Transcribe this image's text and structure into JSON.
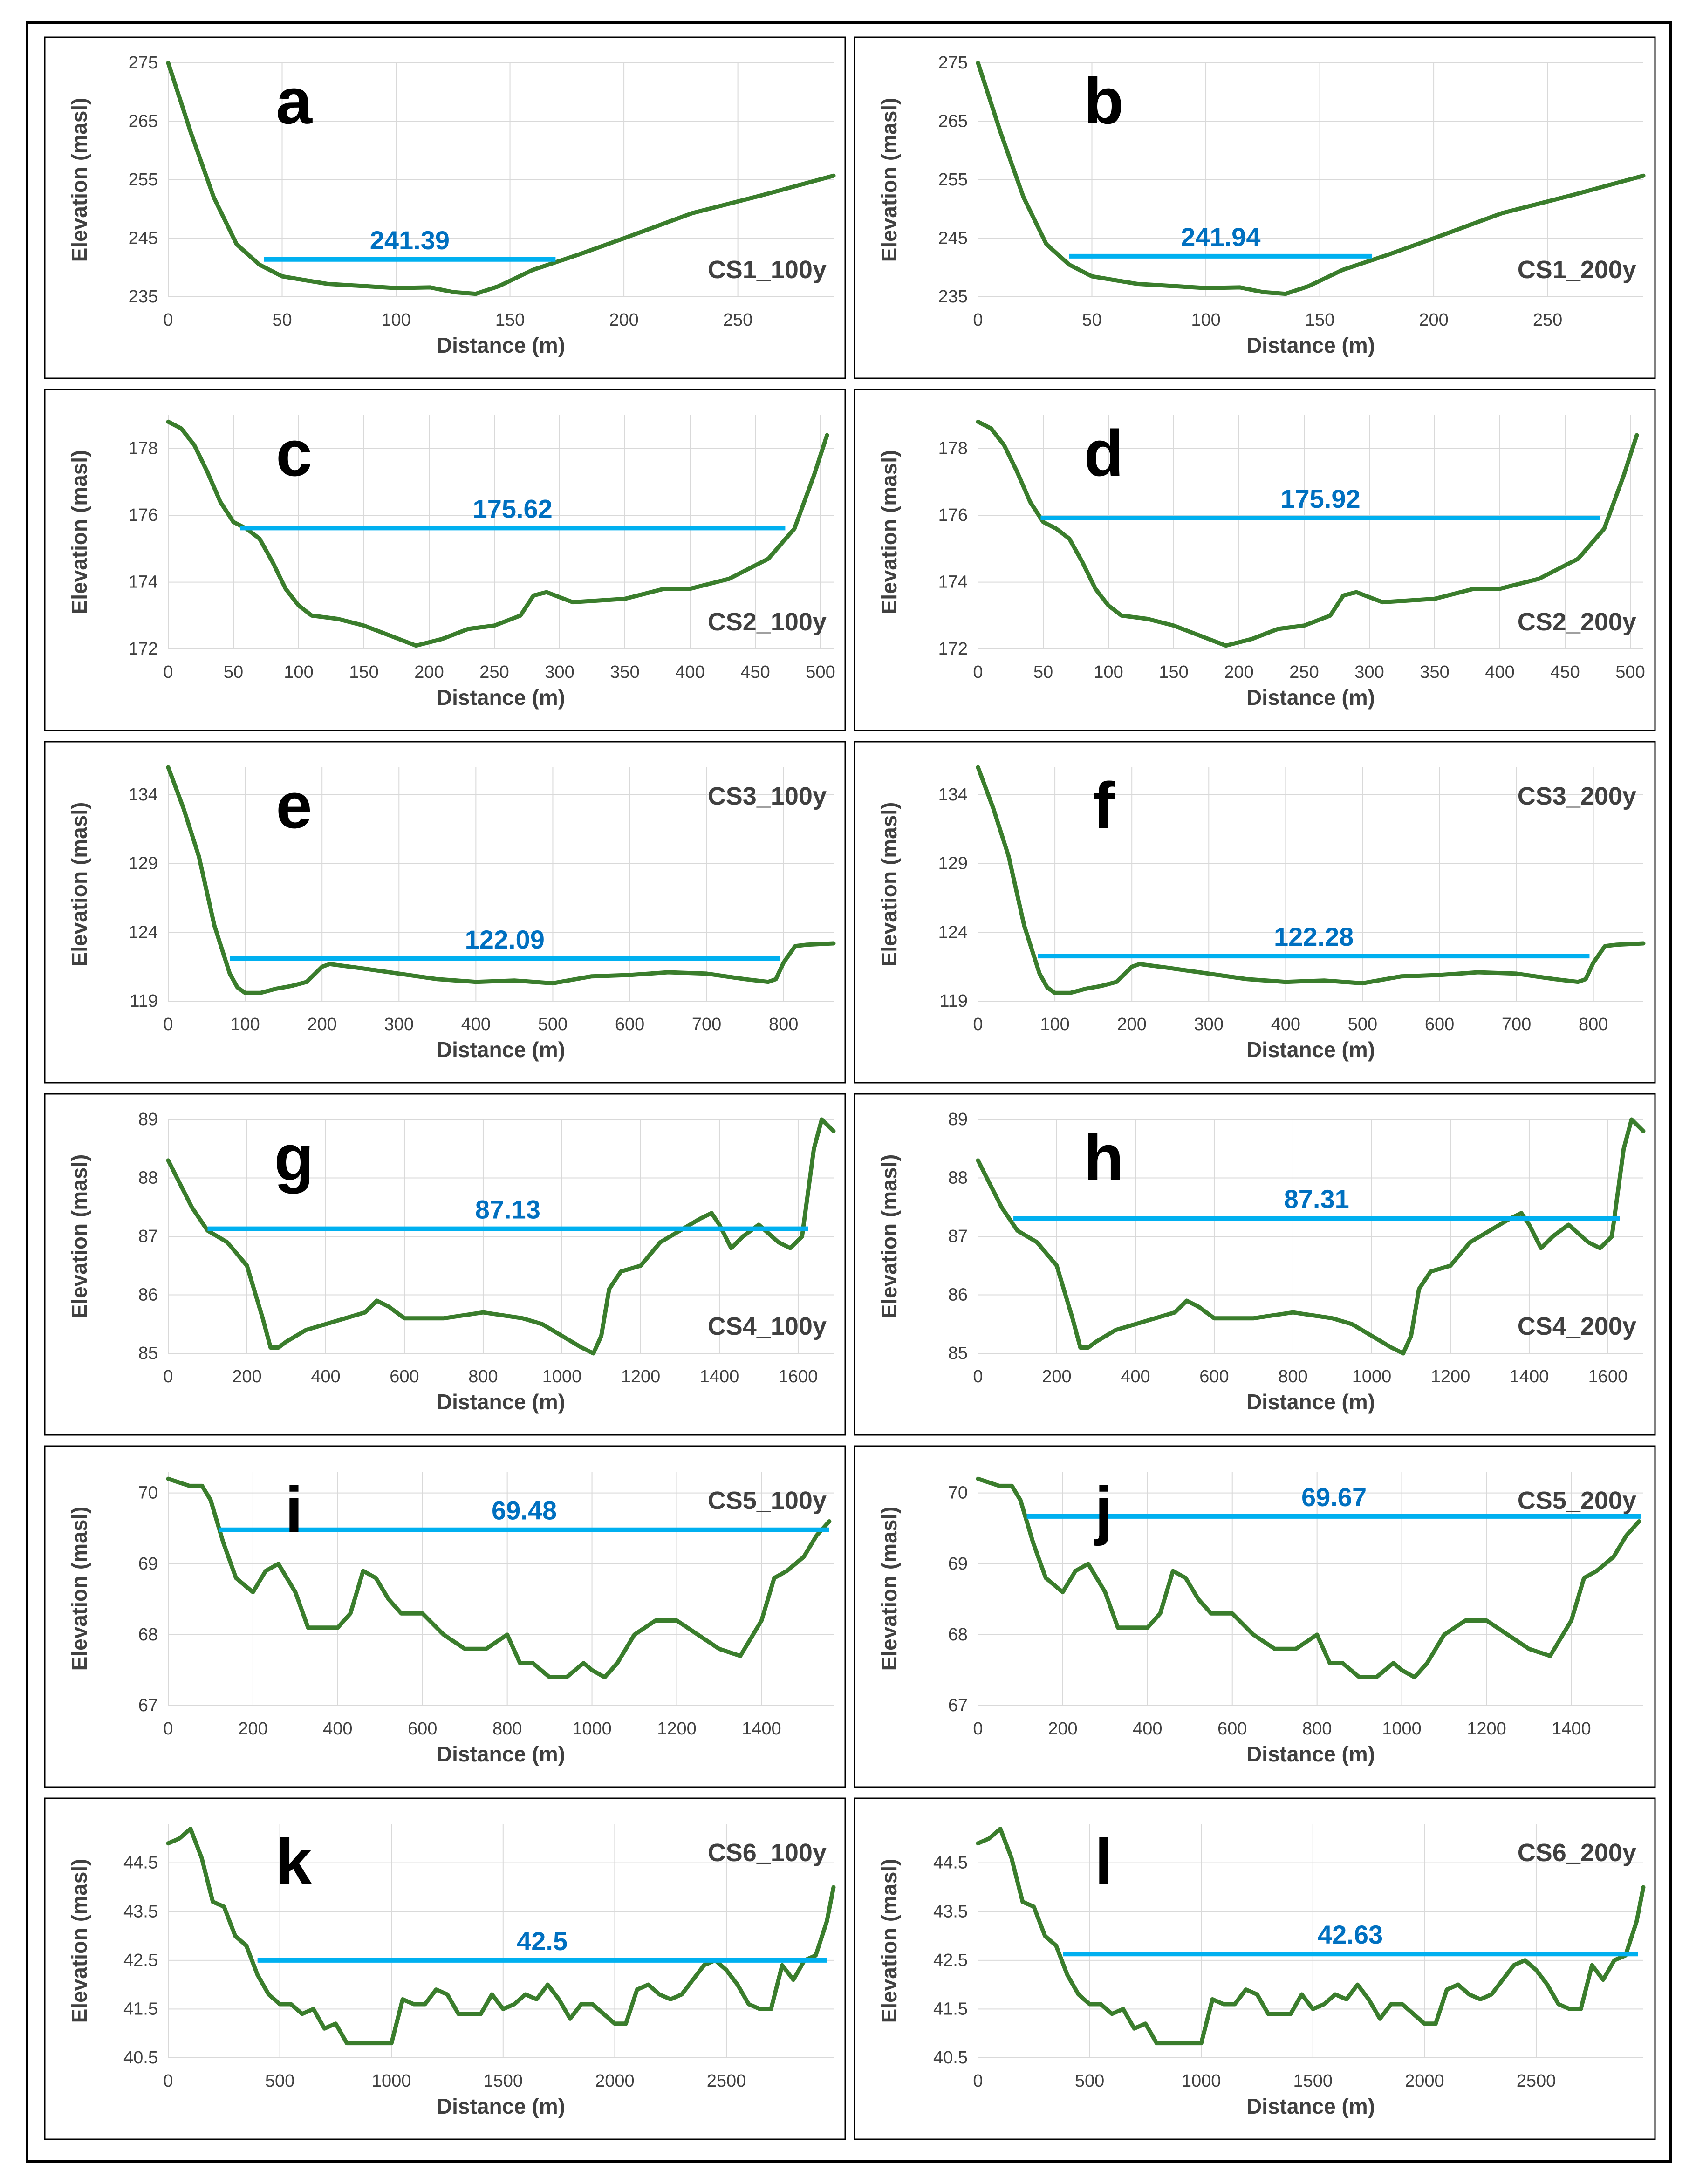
{
  "colors": {
    "profile": "#3a7d2c",
    "water": "#00b0f0",
    "water_label": "#0070c0",
    "grid": "#d9d9d9",
    "text": "#404040",
    "frame": "#000000"
  },
  "chart_data": [
    {
      "type": "line",
      "panel": "a",
      "name": "CS1_100y",
      "water_label": "241.39",
      "water_level": 241.39,
      "water_x": [
        42,
        170
      ],
      "xlabel": "Distance (m)",
      "ylabel": "Elevation (masl)",
      "xlim": [
        0,
        292
      ],
      "ylim": [
        235,
        275
      ],
      "xticks": [
        0,
        50,
        100,
        150,
        200,
        250
      ],
      "yticks": [
        235,
        245,
        255,
        265,
        275
      ],
      "x": [
        0,
        10,
        20,
        30,
        40,
        50,
        70,
        100,
        115,
        125,
        135,
        145,
        160,
        180,
        200,
        230,
        260,
        292
      ],
      "y": [
        275,
        263,
        252,
        244,
        240.5,
        238.5,
        237.2,
        236.5,
        236.6,
        235.8,
        235.5,
        236.8,
        239.6,
        242.2,
        245,
        249.3,
        252.3,
        255.7
      ]
    },
    {
      "type": "line",
      "panel": "b",
      "name": "CS1_200y",
      "water_label": "241.94",
      "water_level": 241.94,
      "water_x": [
        40,
        173
      ],
      "xlabel": "Distance (m)",
      "ylabel": "Elevation (masl)",
      "xlim": [
        0,
        292
      ],
      "ylim": [
        235,
        275
      ],
      "xticks": [
        0,
        50,
        100,
        150,
        200,
        250
      ],
      "yticks": [
        235,
        245,
        255,
        265,
        275
      ],
      "x": [
        0,
        10,
        20,
        30,
        40,
        50,
        70,
        100,
        115,
        125,
        135,
        145,
        160,
        180,
        200,
        230,
        260,
        292
      ],
      "y": [
        275,
        263,
        252,
        244,
        240.5,
        238.5,
        237.2,
        236.5,
        236.6,
        235.8,
        235.5,
        236.8,
        239.6,
        242.2,
        245,
        249.3,
        252.3,
        255.7
      ]
    },
    {
      "type": "line",
      "panel": "c",
      "name": "CS2_100y",
      "water_label": "175.62",
      "water_level": 175.62,
      "water_x": [
        55,
        473
      ],
      "xlabel": "Distance (m)",
      "ylabel": "Elevation (masl)",
      "xlim": [
        0,
        510
      ],
      "ylim": [
        172,
        179
      ],
      "xticks": [
        0,
        50,
        100,
        150,
        200,
        250,
        300,
        350,
        400,
        450,
        500
      ],
      "yticks": [
        172,
        174,
        176,
        178
      ],
      "x": [
        0,
        10,
        20,
        30,
        40,
        50,
        60,
        70,
        80,
        90,
        100,
        110,
        130,
        150,
        170,
        190,
        210,
        230,
        250,
        270,
        280,
        290,
        310,
        350,
        380,
        400,
        430,
        460,
        480,
        495,
        505
      ],
      "y": [
        178.8,
        178.6,
        178.1,
        177.3,
        176.4,
        175.8,
        175.6,
        175.3,
        174.6,
        173.8,
        173.3,
        173.0,
        172.9,
        172.7,
        172.4,
        172.1,
        172.3,
        172.6,
        172.7,
        173.0,
        173.6,
        173.7,
        173.4,
        173.5,
        173.8,
        173.8,
        174.1,
        174.7,
        175.6,
        177.2,
        178.4
      ]
    },
    {
      "type": "line",
      "panel": "d",
      "name": "CS2_200y",
      "water_label": "175.92",
      "water_level": 175.92,
      "water_x": [
        48,
        477
      ],
      "xlabel": "Distance (m)",
      "ylabel": "Elevation (masl)",
      "xlim": [
        0,
        510
      ],
      "ylim": [
        172,
        179
      ],
      "xticks": [
        0,
        50,
        100,
        150,
        200,
        250,
        300,
        350,
        400,
        450,
        500
      ],
      "yticks": [
        172,
        174,
        176,
        178
      ],
      "x": [
        0,
        10,
        20,
        30,
        40,
        50,
        60,
        70,
        80,
        90,
        100,
        110,
        130,
        150,
        170,
        190,
        210,
        230,
        250,
        270,
        280,
        290,
        310,
        350,
        380,
        400,
        430,
        460,
        480,
        495,
        505
      ],
      "y": [
        178.8,
        178.6,
        178.1,
        177.3,
        176.4,
        175.8,
        175.6,
        175.3,
        174.6,
        173.8,
        173.3,
        173.0,
        172.9,
        172.7,
        172.4,
        172.1,
        172.3,
        172.6,
        172.7,
        173.0,
        173.6,
        173.7,
        173.4,
        173.5,
        173.8,
        173.8,
        174.1,
        174.7,
        175.6,
        177.2,
        178.4
      ]
    },
    {
      "type": "line",
      "panel": "e",
      "name": "CS3_100y",
      "water_label": "122.09",
      "water_level": 122.09,
      "water_x": [
        80,
        795
      ],
      "xlabel": "Distance (m)",
      "ylabel": "Elevation (masl)",
      "xlim": [
        0,
        865
      ],
      "ylim": [
        119,
        136
      ],
      "xticks": [
        0,
        100,
        200,
        300,
        400,
        500,
        600,
        700,
        800
      ],
      "yticks": [
        119,
        124,
        129,
        134
      ],
      "x": [
        0,
        20,
        40,
        60,
        80,
        90,
        100,
        120,
        140,
        160,
        180,
        200,
        210,
        250,
        300,
        350,
        400,
        450,
        500,
        550,
        600,
        650,
        700,
        750,
        780,
        790,
        800,
        815,
        830,
        865
      ],
      "y": [
        136,
        133,
        129.5,
        124.5,
        121,
        120,
        119.6,
        119.6,
        119.9,
        120.1,
        120.4,
        121.5,
        121.7,
        121.4,
        121.0,
        120.6,
        120.4,
        120.5,
        120.3,
        120.8,
        120.9,
        121.1,
        121.0,
        120.6,
        120.4,
        120.6,
        121.8,
        123.0,
        123.1,
        123.2
      ]
    },
    {
      "type": "line",
      "panel": "f",
      "name": "CS3_200y",
      "water_label": "122.28",
      "water_level": 122.28,
      "water_x": [
        78,
        795
      ],
      "xlabel": "Distance (m)",
      "ylabel": "Elevation (masl)",
      "xlim": [
        0,
        865
      ],
      "ylim": [
        119,
        136
      ],
      "xticks": [
        0,
        100,
        200,
        300,
        400,
        500,
        600,
        700,
        800
      ],
      "yticks": [
        119,
        124,
        129,
        134
      ],
      "x": [
        0,
        20,
        40,
        60,
        80,
        90,
        100,
        120,
        140,
        160,
        180,
        200,
        210,
        250,
        300,
        350,
        400,
        450,
        500,
        550,
        600,
        650,
        700,
        750,
        780,
        790,
        800,
        815,
        830,
        865
      ],
      "y": [
        136,
        133,
        129.5,
        124.5,
        121,
        120,
        119.6,
        119.6,
        119.9,
        120.1,
        120.4,
        121.5,
        121.7,
        121.4,
        121.0,
        120.6,
        120.4,
        120.5,
        120.3,
        120.8,
        120.9,
        121.1,
        121.0,
        120.6,
        120.4,
        120.6,
        121.8,
        123.0,
        123.1,
        123.2
      ]
    },
    {
      "type": "line",
      "panel": "g",
      "name": "CS4_100y",
      "water_label": "87.13",
      "water_level": 87.13,
      "water_x": [
        100,
        1625
      ],
      "xlabel": "Distance (m)",
      "ylabel": "Elevation (masl)",
      "xlim": [
        0,
        1690
      ],
      "ylim": [
        85,
        89
      ],
      "xticks": [
        0,
        200,
        400,
        600,
        800,
        1000,
        1200,
        1400,
        1600
      ],
      "yticks": [
        85,
        86,
        87,
        88,
        89
      ],
      "x": [
        0,
        30,
        60,
        100,
        150,
        200,
        240,
        260,
        280,
        300,
        350,
        400,
        450,
        500,
        530,
        560,
        600,
        700,
        800,
        900,
        950,
        1000,
        1050,
        1080,
        1100,
        1120,
        1150,
        1200,
        1250,
        1300,
        1350,
        1380,
        1400,
        1430,
        1460,
        1500,
        1550,
        1580,
        1610,
        1640,
        1660,
        1690
      ],
      "y": [
        88.3,
        87.9,
        87.5,
        87.1,
        86.9,
        86.5,
        85.6,
        85.1,
        85.1,
        85.2,
        85.4,
        85.5,
        85.6,
        85.7,
        85.9,
        85.8,
        85.6,
        85.6,
        85.7,
        85.6,
        85.5,
        85.3,
        85.1,
        85.0,
        85.3,
        86.1,
        86.4,
        86.5,
        86.9,
        87.1,
        87.3,
        87.4,
        87.2,
        86.8,
        87.0,
        87.2,
        86.9,
        86.8,
        87.0,
        88.5,
        89.0,
        88.8
      ]
    },
    {
      "type": "line",
      "panel": "h",
      "name": "CS4_200y",
      "water_label": "87.31",
      "water_level": 87.31,
      "water_x": [
        90,
        1630
      ],
      "xlabel": "Distance (m)",
      "ylabel": "Elevation (masl)",
      "xlim": [
        0,
        1690
      ],
      "ylim": [
        85,
        89
      ],
      "xticks": [
        0,
        200,
        400,
        600,
        800,
        1000,
        1200,
        1400,
        1600
      ],
      "yticks": [
        85,
        86,
        87,
        88,
        89
      ],
      "x": [
        0,
        30,
        60,
        100,
        150,
        200,
        240,
        260,
        280,
        300,
        350,
        400,
        450,
        500,
        530,
        560,
        600,
        700,
        800,
        900,
        950,
        1000,
        1050,
        1080,
        1100,
        1120,
        1150,
        1200,
        1250,
        1300,
        1350,
        1380,
        1400,
        1430,
        1460,
        1500,
        1550,
        1580,
        1610,
        1640,
        1660,
        1690
      ],
      "y": [
        88.3,
        87.9,
        87.5,
        87.1,
        86.9,
        86.5,
        85.6,
        85.1,
        85.1,
        85.2,
        85.4,
        85.5,
        85.6,
        85.7,
        85.9,
        85.8,
        85.6,
        85.6,
        85.7,
        85.6,
        85.5,
        85.3,
        85.1,
        85.0,
        85.3,
        86.1,
        86.4,
        86.5,
        86.9,
        87.1,
        87.3,
        87.4,
        87.2,
        86.8,
        87.0,
        87.2,
        86.9,
        86.8,
        87.0,
        88.5,
        89.0,
        88.8
      ]
    },
    {
      "type": "line",
      "panel": "i",
      "name": "CS5_100y",
      "water_label": "69.48",
      "water_level": 69.48,
      "water_x": [
        120,
        1560
      ],
      "xlabel": "Distance (m)",
      "ylabel": "Elevation (masl)",
      "xlim": [
        0,
        1570
      ],
      "ylim": [
        67,
        70.3
      ],
      "xticks": [
        0,
        200,
        400,
        600,
        800,
        1000,
        1200,
        1400
      ],
      "yticks": [
        67,
        68,
        69,
        70
      ],
      "x": [
        0,
        50,
        80,
        100,
        130,
        160,
        200,
        230,
        260,
        280,
        300,
        330,
        360,
        400,
        430,
        460,
        490,
        520,
        550,
        600,
        650,
        700,
        750,
        800,
        830,
        860,
        900,
        940,
        980,
        1000,
        1030,
        1060,
        1100,
        1150,
        1200,
        1250,
        1300,
        1350,
        1400,
        1430,
        1460,
        1500,
        1530,
        1560
      ],
      "y": [
        70.2,
        70.1,
        70.1,
        69.9,
        69.3,
        68.8,
        68.6,
        68.9,
        69.0,
        68.8,
        68.6,
        68.1,
        68.1,
        68.1,
        68.3,
        68.9,
        68.8,
        68.5,
        68.3,
        68.3,
        68.0,
        67.8,
        67.8,
        68.0,
        67.6,
        67.6,
        67.4,
        67.4,
        67.6,
        67.5,
        67.4,
        67.6,
        68.0,
        68.2,
        68.2,
        68.0,
        67.8,
        67.7,
        68.2,
        68.8,
        68.9,
        69.1,
        69.4,
        69.6
      ]
    },
    {
      "type": "line",
      "panel": "j",
      "name": "CS5_200y",
      "water_label": "69.67",
      "water_level": 69.67,
      "water_x": [
        115,
        1565
      ],
      "xlabel": "Distance (m)",
      "ylabel": "Elevation (masl)",
      "xlim": [
        0,
        1570
      ],
      "ylim": [
        67,
        70.3
      ],
      "xticks": [
        0,
        200,
        400,
        600,
        800,
        1000,
        1200,
        1400
      ],
      "yticks": [
        67,
        68,
        69,
        70
      ],
      "x": [
        0,
        50,
        80,
        100,
        130,
        160,
        200,
        230,
        260,
        280,
        300,
        330,
        360,
        400,
        430,
        460,
        490,
        520,
        550,
        600,
        650,
        700,
        750,
        800,
        830,
        860,
        900,
        940,
        980,
        1000,
        1030,
        1060,
        1100,
        1150,
        1200,
        1250,
        1300,
        1350,
        1400,
        1430,
        1460,
        1500,
        1530,
        1560
      ],
      "y": [
        70.2,
        70.1,
        70.1,
        69.9,
        69.3,
        68.8,
        68.6,
        68.9,
        69.0,
        68.8,
        68.6,
        68.1,
        68.1,
        68.1,
        68.3,
        68.9,
        68.8,
        68.5,
        68.3,
        68.3,
        68.0,
        67.8,
        67.8,
        68.0,
        67.6,
        67.6,
        67.4,
        67.4,
        67.6,
        67.5,
        67.4,
        67.6,
        68.0,
        68.2,
        68.2,
        68.0,
        67.8,
        67.7,
        68.2,
        68.8,
        68.9,
        69.1,
        69.4,
        69.6
      ]
    },
    {
      "type": "line",
      "panel": "k",
      "name": "CS6_100y",
      "water_label": "42.5",
      "water_level": 42.5,
      "water_x": [
        400,
        2950
      ],
      "xlabel": "Distance (m)",
      "ylabel": "Elevation (masl)",
      "xlim": [
        0,
        2980
      ],
      "ylim": [
        40.5,
        45.3
      ],
      "xticks": [
        0,
        500,
        1000,
        1500,
        2000,
        2500
      ],
      "yticks": [
        40.5,
        41.5,
        42.5,
        43.5,
        44.5
      ],
      "x": [
        0,
        50,
        100,
        150,
        200,
        250,
        300,
        350,
        400,
        450,
        500,
        550,
        600,
        650,
        700,
        750,
        800,
        850,
        900,
        950,
        1000,
        1050,
        1100,
        1150,
        1200,
        1250,
        1300,
        1350,
        1400,
        1450,
        1500,
        1550,
        1600,
        1650,
        1700,
        1750,
        1800,
        1850,
        1900,
        1950,
        2000,
        2050,
        2100,
        2150,
        2200,
        2250,
        2300,
        2350,
        2400,
        2450,
        2500,
        2550,
        2600,
        2650,
        2700,
        2750,
        2800,
        2850,
        2900,
        2950,
        2980
      ],
      "y": [
        44.9,
        45.0,
        45.2,
        44.6,
        43.7,
        43.6,
        43.0,
        42.8,
        42.2,
        41.8,
        41.6,
        41.6,
        41.4,
        41.5,
        41.1,
        41.2,
        40.8,
        40.8,
        40.8,
        40.8,
        40.8,
        41.7,
        41.6,
        41.6,
        41.9,
        41.8,
        41.4,
        41.4,
        41.4,
        41.8,
        41.5,
        41.6,
        41.8,
        41.7,
        42.0,
        41.7,
        41.3,
        41.6,
        41.6,
        41.4,
        41.2,
        41.2,
        41.9,
        42.0,
        41.8,
        41.7,
        41.8,
        42.1,
        42.4,
        42.5,
        42.3,
        42.0,
        41.6,
        41.5,
        41.5,
        42.4,
        42.1,
        42.5,
        42.6,
        43.3,
        44.0
      ]
    },
    {
      "type": "line",
      "panel": "l",
      "name": "CS6_200y",
      "water_label": "42.63",
      "water_level": 42.63,
      "water_x": [
        380,
        2955
      ],
      "xlabel": "Distance (m)",
      "ylabel": "Elevation (masl)",
      "xlim": [
        0,
        2980
      ],
      "ylim": [
        40.5,
        45.3
      ],
      "xticks": [
        0,
        500,
        1000,
        1500,
        2000,
        2500
      ],
      "yticks": [
        40.5,
        41.5,
        42.5,
        43.5,
        44.5
      ],
      "x": [
        0,
        50,
        100,
        150,
        200,
        250,
        300,
        350,
        400,
        450,
        500,
        550,
        600,
        650,
        700,
        750,
        800,
        850,
        900,
        950,
        1000,
        1050,
        1100,
        1150,
        1200,
        1250,
        1300,
        1350,
        1400,
        1450,
        1500,
        1550,
        1600,
        1650,
        1700,
        1750,
        1800,
        1850,
        1900,
        1950,
        2000,
        2050,
        2100,
        2150,
        2200,
        2250,
        2300,
        2350,
        2400,
        2450,
        2500,
        2550,
        2600,
        2650,
        2700,
        2750,
        2800,
        2850,
        2900,
        2950,
        2980
      ],
      "y": [
        44.9,
        45.0,
        45.2,
        44.6,
        43.7,
        43.6,
        43.0,
        42.8,
        42.2,
        41.8,
        41.6,
        41.6,
        41.4,
        41.5,
        41.1,
        41.2,
        40.8,
        40.8,
        40.8,
        40.8,
        40.8,
        41.7,
        41.6,
        41.6,
        41.9,
        41.8,
        41.4,
        41.4,
        41.4,
        41.8,
        41.5,
        41.6,
        41.8,
        41.7,
        42.0,
        41.7,
        41.3,
        41.6,
        41.6,
        41.4,
        41.2,
        41.2,
        41.9,
        42.0,
        41.8,
        41.7,
        41.8,
        42.1,
        42.4,
        42.5,
        42.3,
        42.0,
        41.6,
        41.5,
        41.5,
        42.4,
        42.1,
        42.5,
        42.6,
        43.3,
        44.0
      ]
    }
  ]
}
